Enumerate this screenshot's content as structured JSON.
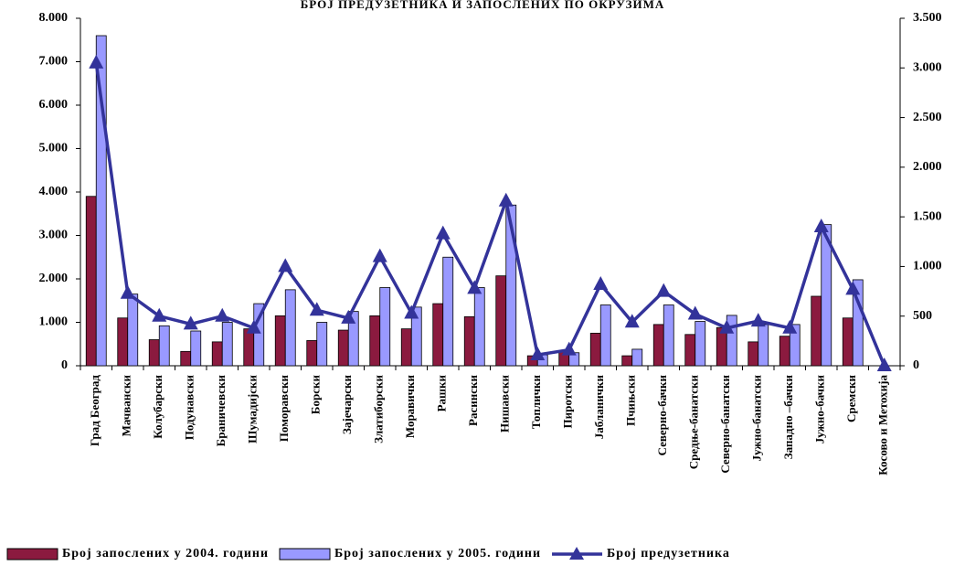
{
  "chart_data": {
    "type": "bar_line",
    "title": "БРОЈ ПРЕДУЗЕТНИКА И ЗАПОСЛЕНИХ ПО ОКРУЗИМА",
    "categories": [
      "Град Београд",
      "Мачвански",
      "Колубарски",
      "Подунавски",
      "Браничевски",
      "Шумадијски",
      "Поморавски",
      "Борски",
      "Зајечарски",
      "Златиборски",
      "Моравички",
      "Рашки",
      "Расински",
      "Нишавски",
      "Топлички",
      "Пиротски",
      "Јабланички",
      "Пчињски",
      "Северно-бачки",
      "Средње-банатски",
      "Северно-банатски",
      "Јужно-банатски",
      "Западно –бачки",
      "Јужно-бачки",
      "Сремски",
      "Косово и Метохија"
    ],
    "series": [
      {
        "name": "Број запослених у 2004. години",
        "color": "#8b1a3f",
        "kind": "bar",
        "values": [
          3900,
          1100,
          600,
          330,
          550,
          850,
          1150,
          580,
          820,
          1150,
          850,
          1430,
          1130,
          2070,
          230,
          350,
          750,
          230,
          950,
          720,
          880,
          550,
          680,
          1600,
          1100,
          null
        ]
      },
      {
        "name": "Број запослених у 2005. години",
        "color": "#9999ff",
        "kind": "bar",
        "values": [
          7600,
          1650,
          920,
          800,
          1000,
          1430,
          1750,
          1000,
          1250,
          1800,
          1350,
          2500,
          1800,
          3700,
          250,
          300,
          1400,
          380,
          1400,
          1020,
          1160,
          950,
          950,
          3250,
          1980,
          null
        ]
      },
      {
        "name": "Број предузетника",
        "color": "#33339a",
        "kind": "line",
        "axis": "y2",
        "values": [
          3050,
          730,
          500,
          420,
          500,
          380,
          1000,
          560,
          480,
          1100,
          530,
          1330,
          780,
          1660,
          110,
          160,
          820,
          440,
          750,
          520,
          380,
          450,
          380,
          1400,
          770,
          0
        ]
      }
    ],
    "ylim": [
      0,
      8000
    ],
    "yticks": [
      {
        "value": 0,
        "label": "0"
      },
      {
        "value": 1000,
        "label": "1.000"
      },
      {
        "value": 2000,
        "label": "2.000"
      },
      {
        "value": 3000,
        "label": "3.000"
      },
      {
        "value": 4000,
        "label": "4.000"
      },
      {
        "value": 5000,
        "label": "5.000"
      },
      {
        "value": 6000,
        "label": "6.000"
      },
      {
        "value": 7000,
        "label": "7.000"
      },
      {
        "value": 8000,
        "label": "8.000"
      }
    ],
    "y2lim": [
      0,
      3500
    ],
    "y2ticks": [
      {
        "value": 0,
        "label": "0"
      },
      {
        "value": 500,
        "label": "500"
      },
      {
        "value": 1000,
        "label": "1.000"
      },
      {
        "value": 1500,
        "label": "1.500"
      },
      {
        "value": 2000,
        "label": "2.000"
      },
      {
        "value": 2500,
        "label": "2.500"
      },
      {
        "value": 3000,
        "label": "3.000"
      },
      {
        "value": 3500,
        "label": "3.500"
      }
    ],
    "legend": "bottom"
  }
}
